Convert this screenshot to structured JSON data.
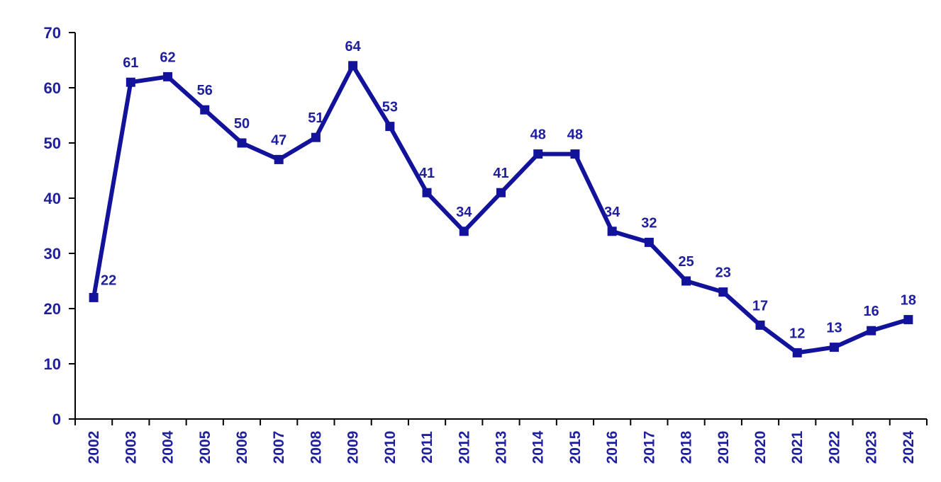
{
  "chart_data": {
    "type": "line",
    "title": "",
    "xlabel": "",
    "ylabel": "",
    "categories": [
      "2002",
      "2003",
      "2004",
      "2005",
      "2006",
      "2007",
      "2008",
      "2009",
      "2010",
      "2011",
      "2012",
      "2013",
      "2014",
      "2015",
      "2016",
      "2017",
      "2018",
      "2019",
      "2020",
      "2021",
      "2022",
      "2023",
      "2024"
    ],
    "values": [
      22,
      61,
      62,
      56,
      50,
      47,
      51,
      64,
      53,
      41,
      34,
      41,
      48,
      48,
      34,
      32,
      25,
      23,
      17,
      12,
      13,
      16,
      18
    ],
    "ylim": [
      0,
      70
    ],
    "ytick_step": 10,
    "ytick_labels": [
      "0",
      "10",
      "20",
      "30",
      "40",
      "50",
      "60",
      "70"
    ],
    "grid": false,
    "legend_position": "none",
    "marker_shape": "square",
    "data_labels_visible": true,
    "colors": {
      "line": "#12129A",
      "marker": "#12129A",
      "data_label": "#1F1F9C",
      "tick_label": "#1F1F9C",
      "axis": "#000000",
      "background": "#FFFFFF"
    }
  }
}
